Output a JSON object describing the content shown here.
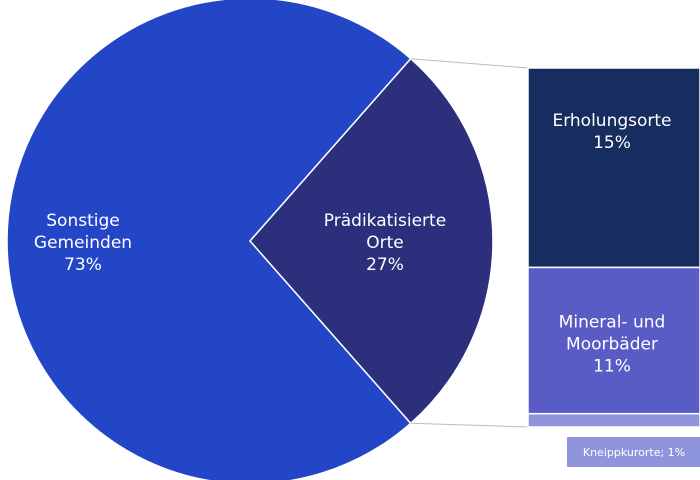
{
  "chart_data": {
    "type": "bar-of-pie",
    "categories": [
      "Sonstige Gemeinden",
      "Prädikatisierte Orte"
    ],
    "values": [
      73,
      27
    ],
    "value_labels": [
      "73%",
      "27%"
    ],
    "colors": [
      "#2346c6",
      "#2b2f7c"
    ],
    "breakout": {
      "categories": [
        "Erholungsorte",
        "Mineral- und Moorbäder",
        "Kneippkurorte"
      ],
      "values": [
        15,
        11,
        1
      ],
      "value_labels": [
        "15%",
        "11%",
        "1%"
      ],
      "colors": [
        "#172d5f",
        "#5a5cc6",
        "#8e95dc"
      ]
    }
  }
}
